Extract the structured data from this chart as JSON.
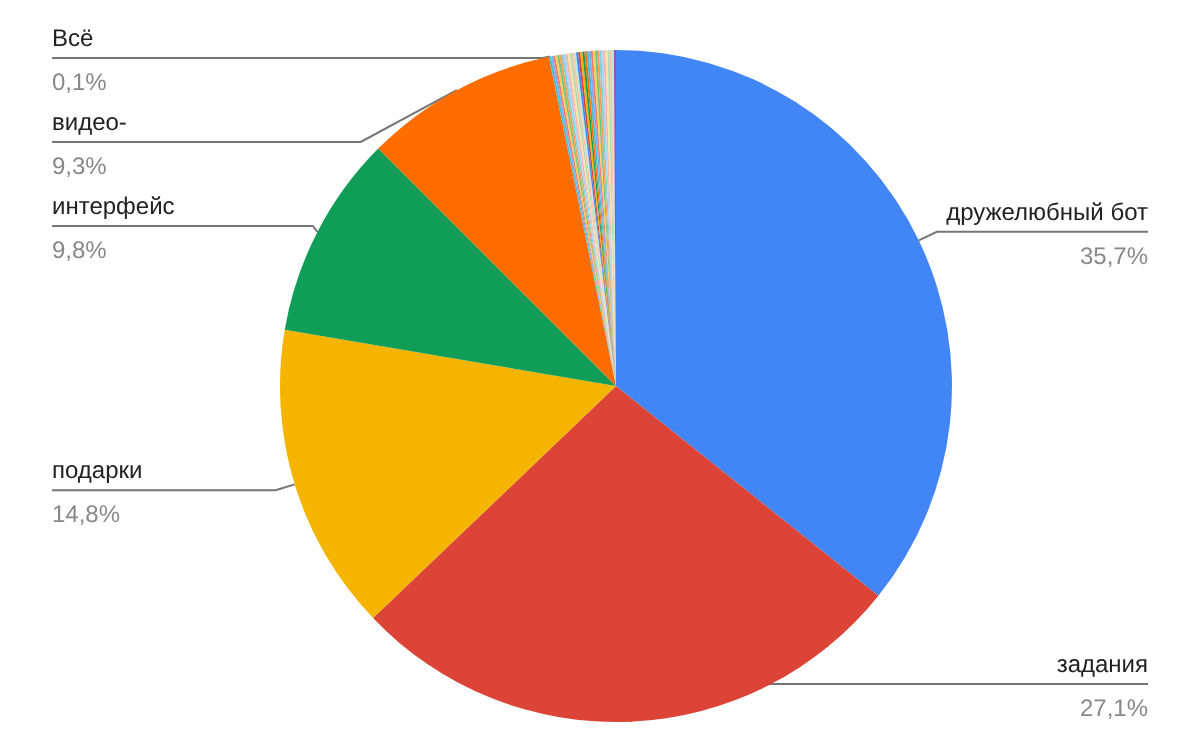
{
  "chart_data": {
    "type": "pie",
    "categories": [
      "дружелюбный бот",
      "задания",
      "подарки",
      "интерфейс",
      "видео-",
      "Всё",
      null,
      null,
      null,
      null,
      null,
      null,
      null,
      null,
      null,
      null,
      null,
      null,
      null,
      null,
      null,
      null,
      null,
      null,
      null,
      null,
      null,
      null,
      null,
      null,
      null,
      null,
      null,
      null,
      null,
      null,
      null
    ],
    "values": [
      35.7,
      27.1,
      14.8,
      9.8,
      9.3,
      0.1,
      0.1,
      0.1,
      0.1,
      0.1,
      0.1,
      0.1,
      0.1,
      0.1,
      0.1,
      0.1,
      0.1,
      0.1,
      0.1,
      0.1,
      0.1,
      0.1,
      0.1,
      0.1,
      0.1,
      0.1,
      0.1,
      0.1,
      0.1,
      0.1,
      0.1,
      0.1,
      0.1,
      0.1,
      0.1,
      0.1,
      0.1
    ],
    "value_labels": [
      "35,7%",
      "27,1%",
      "14,8%",
      "9,8%",
      "9,3%",
      "0,1%",
      null,
      null,
      null,
      null,
      null,
      null,
      null,
      null,
      null,
      null,
      null,
      null,
      null,
      null,
      null,
      null,
      null,
      null,
      null,
      null,
      null,
      null,
      null,
      null,
      null,
      null,
      null,
      null,
      null,
      null,
      null
    ],
    "colors": [
      "#4285f4",
      "#db4437",
      "#f4b400",
      "#0f9d58",
      "#ff6d01",
      "#46bdc6",
      "#7baaf7",
      "#f07b72",
      "#fcd04f",
      "#71c287",
      "#ff994d",
      "#7ed1d7",
      "#b3cefb",
      "#f7b4ae",
      "#fde49b",
      "#aedcba",
      "#ffc599",
      "#b5e8eb",
      "#4285f4",
      "#db4437",
      "#f4b400",
      "#0f9d58",
      "#ff6d01",
      "#46bdc6",
      "#7baaf7",
      "#f07b72",
      "#fcd04f",
      "#71c287",
      "#ff994d",
      "#7ed1d7",
      "#b3cefb",
      "#f7b4ae",
      "#fde49b",
      "#aedcba",
      "#ffc599",
      "#b5e8eb",
      "#ab47bc"
    ],
    "legend": false
  }
}
